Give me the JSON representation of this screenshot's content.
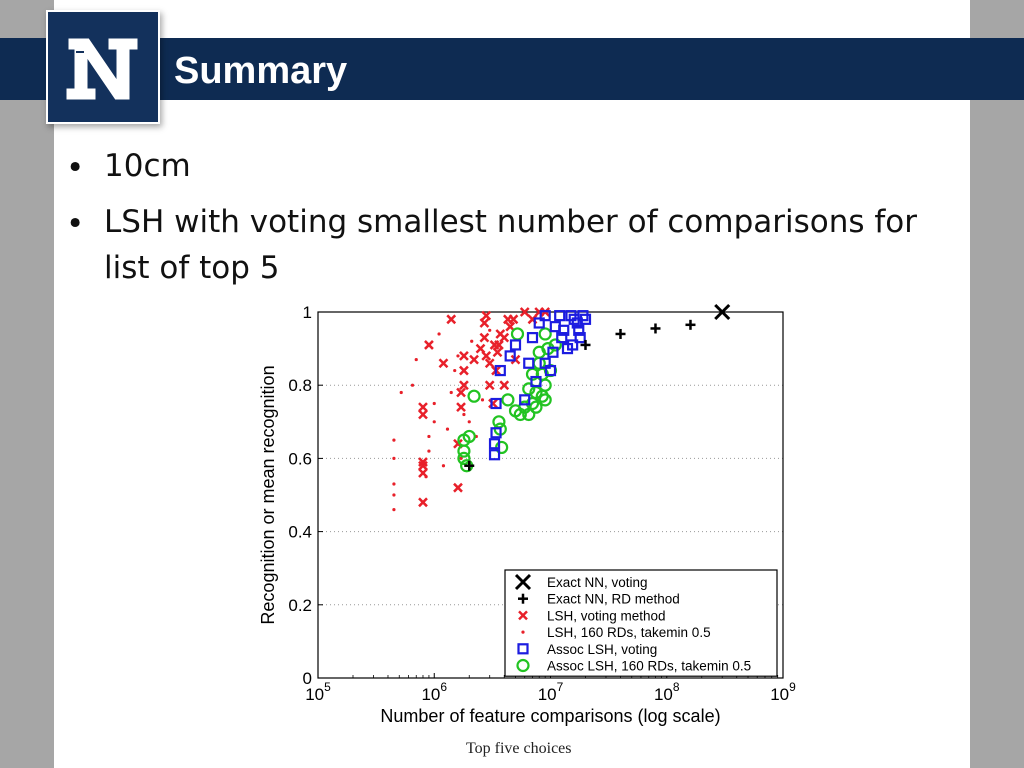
{
  "header": {
    "title": "Summary",
    "logo_text": "N"
  },
  "bullets": [
    "10cm",
    "LSH with voting smallest number of comparisons for list of top 5"
  ],
  "colors": {
    "header": "#0e2b52",
    "background": "#a6a6a6",
    "red": "#e8202a",
    "blue": "#1c1ce0",
    "green": "#22c322",
    "black": "#000000"
  },
  "chart_data": {
    "type": "scatter",
    "xlabel": "Number of feature comparisons (log scale)",
    "ylabel": "Recognition or mean recognition",
    "xscale": "log",
    "xlim": [
      100000,
      1000000000
    ],
    "ylim": [
      0,
      1
    ],
    "x_ticks": [
      {
        "base": "10",
        "exp": "5"
      },
      {
        "base": "10",
        "exp": "6"
      },
      {
        "base": "10",
        "exp": "7"
      },
      {
        "base": "10",
        "exp": "8"
      },
      {
        "base": "10",
        "exp": "9"
      }
    ],
    "y_ticks": [
      "0",
      "0.2",
      "0.4",
      "0.6",
      "0.8",
      "1"
    ],
    "grid": "dotted horizontal",
    "legend_position": "bottom-right",
    "caption": "Top five choices",
    "series": [
      {
        "name": "Exact NN, voting",
        "marker": "x-bold",
        "color": "#000000",
        "points": [
          [
            300000000,
            1.0
          ]
        ]
      },
      {
        "name": "Exact NN, RD method",
        "marker": "plus",
        "color": "#000000",
        "points": [
          [
            2000000,
            0.58
          ],
          [
            20000000,
            0.91
          ],
          [
            40000000,
            0.94
          ],
          [
            80000000,
            0.955
          ],
          [
            160000000,
            0.965
          ]
        ]
      },
      {
        "name": "LSH, voting method",
        "marker": "x",
        "color": "#e8202a",
        "points": [
          [
            800000,
            0.48
          ],
          [
            800000,
            0.56
          ],
          [
            800000,
            0.58
          ],
          [
            800000,
            0.59
          ],
          [
            800000,
            0.72
          ],
          [
            800000,
            0.74
          ],
          [
            900000,
            0.91
          ],
          [
            1200000,
            0.86
          ],
          [
            1600000,
            0.52
          ],
          [
            1600000,
            0.64
          ],
          [
            1700000,
            0.74
          ],
          [
            1700000,
            0.78
          ],
          [
            1800000,
            0.8
          ],
          [
            1800000,
            0.84
          ],
          [
            1800000,
            0.88
          ],
          [
            1400000,
            0.98
          ],
          [
            2200000,
            0.87
          ],
          [
            2500000,
            0.9
          ],
          [
            2700000,
            0.93
          ],
          [
            2700000,
            0.97
          ],
          [
            2800000,
            0.88
          ],
          [
            2800000,
            0.99
          ],
          [
            3000000,
            0.8
          ],
          [
            3000000,
            0.86
          ],
          [
            3200000,
            0.75
          ],
          [
            3300000,
            0.91
          ],
          [
            3400000,
            0.84
          ],
          [
            3500000,
            0.89
          ],
          [
            3600000,
            0.91
          ],
          [
            3700000,
            0.94
          ],
          [
            4000000,
            0.8
          ],
          [
            4000000,
            0.93
          ],
          [
            4300000,
            0.98
          ],
          [
            4500000,
            0.96
          ],
          [
            4800000,
            0.98
          ],
          [
            5000000,
            0.87
          ],
          [
            6000000,
            1.0
          ],
          [
            7000000,
            0.98
          ],
          [
            8000000,
            1.0
          ],
          [
            9000000,
            1.0
          ]
        ]
      },
      {
        "name": "LSH, 160 RDs, takemin 0.5",
        "marker": "dot",
        "color": "#e8202a",
        "points": [
          [
            450000,
            0.46
          ],
          [
            450000,
            0.5
          ],
          [
            450000,
            0.53
          ],
          [
            450000,
            0.6
          ],
          [
            450000,
            0.65
          ],
          [
            520000,
            0.78
          ],
          [
            650000,
            0.8
          ],
          [
            700000,
            0.87
          ],
          [
            850000,
            0.55
          ],
          [
            900000,
            0.62
          ],
          [
            900000,
            0.66
          ],
          [
            1000000,
            0.7
          ],
          [
            1000000,
            0.75
          ],
          [
            1100000,
            0.94
          ],
          [
            1200000,
            0.58
          ],
          [
            1300000,
            0.68
          ],
          [
            1400000,
            0.78
          ],
          [
            1500000,
            0.84
          ],
          [
            1600000,
            0.88
          ],
          [
            1700000,
            0.6
          ],
          [
            1800000,
            0.72
          ],
          [
            2000000,
            0.7
          ],
          [
            2100000,
            0.92
          ],
          [
            2300000,
            0.66
          ],
          [
            2600000,
            0.76
          ],
          [
            3000000,
            0.95
          ]
        ]
      },
      {
        "name": "Assoc LSH, voting",
        "marker": "square",
        "color": "#1c1ce0",
        "points": [
          [
            3300000,
            0.61
          ],
          [
            3300000,
            0.64
          ],
          [
            3400000,
            0.67
          ],
          [
            3400000,
            0.75
          ],
          [
            3700000,
            0.84
          ],
          [
            4500000,
            0.88
          ],
          [
            5000000,
            0.91
          ],
          [
            6000000,
            0.76
          ],
          [
            6500000,
            0.86
          ],
          [
            7000000,
            0.93
          ],
          [
            7500000,
            0.81
          ],
          [
            8000000,
            0.97
          ],
          [
            9000000,
            0.99
          ],
          [
            9000000,
            0.86
          ],
          [
            10000000,
            0.84
          ],
          [
            10500000,
            0.89
          ],
          [
            11000000,
            0.96
          ],
          [
            12000000,
            0.99
          ],
          [
            12500000,
            0.93
          ],
          [
            13000000,
            0.95
          ],
          [
            14000000,
            0.9
          ],
          [
            15000000,
            0.99
          ],
          [
            15500000,
            0.91
          ],
          [
            16000000,
            0.98
          ],
          [
            17000000,
            0.97
          ],
          [
            17500000,
            0.95
          ],
          [
            18000000,
            0.93
          ],
          [
            19000000,
            0.99
          ],
          [
            20000000,
            0.98
          ]
        ]
      },
      {
        "name": "Assoc LSH, 160 RDs, takemin 0.5",
        "marker": "circle",
        "color": "#22c322",
        "points": [
          [
            1800000,
            0.65
          ],
          [
            1800000,
            0.62
          ],
          [
            1800000,
            0.6
          ],
          [
            1900000,
            0.58
          ],
          [
            2000000,
            0.66
          ],
          [
            2200000,
            0.77
          ],
          [
            3600000,
            0.7
          ],
          [
            3700000,
            0.68
          ],
          [
            3800000,
            0.63
          ],
          [
            4300000,
            0.76
          ],
          [
            5000000,
            0.73
          ],
          [
            5500000,
            0.72
          ],
          [
            6000000,
            0.74
          ],
          [
            6500000,
            0.72
          ],
          [
            6500000,
            0.79
          ],
          [
            7000000,
            0.75
          ],
          [
            7000000,
            0.83
          ],
          [
            7500000,
            0.74
          ],
          [
            7500000,
            0.78
          ],
          [
            8000000,
            0.86
          ],
          [
            8000000,
            0.89
          ],
          [
            8500000,
            0.77
          ],
          [
            8500000,
            0.83
          ],
          [
            9000000,
            0.76
          ],
          [
            9000000,
            0.8
          ],
          [
            9500000,
            0.9
          ],
          [
            10000000,
            0.84
          ],
          [
            5200000,
            0.94
          ],
          [
            9000000,
            0.94
          ],
          [
            11000000,
            0.91
          ]
        ]
      }
    ]
  }
}
